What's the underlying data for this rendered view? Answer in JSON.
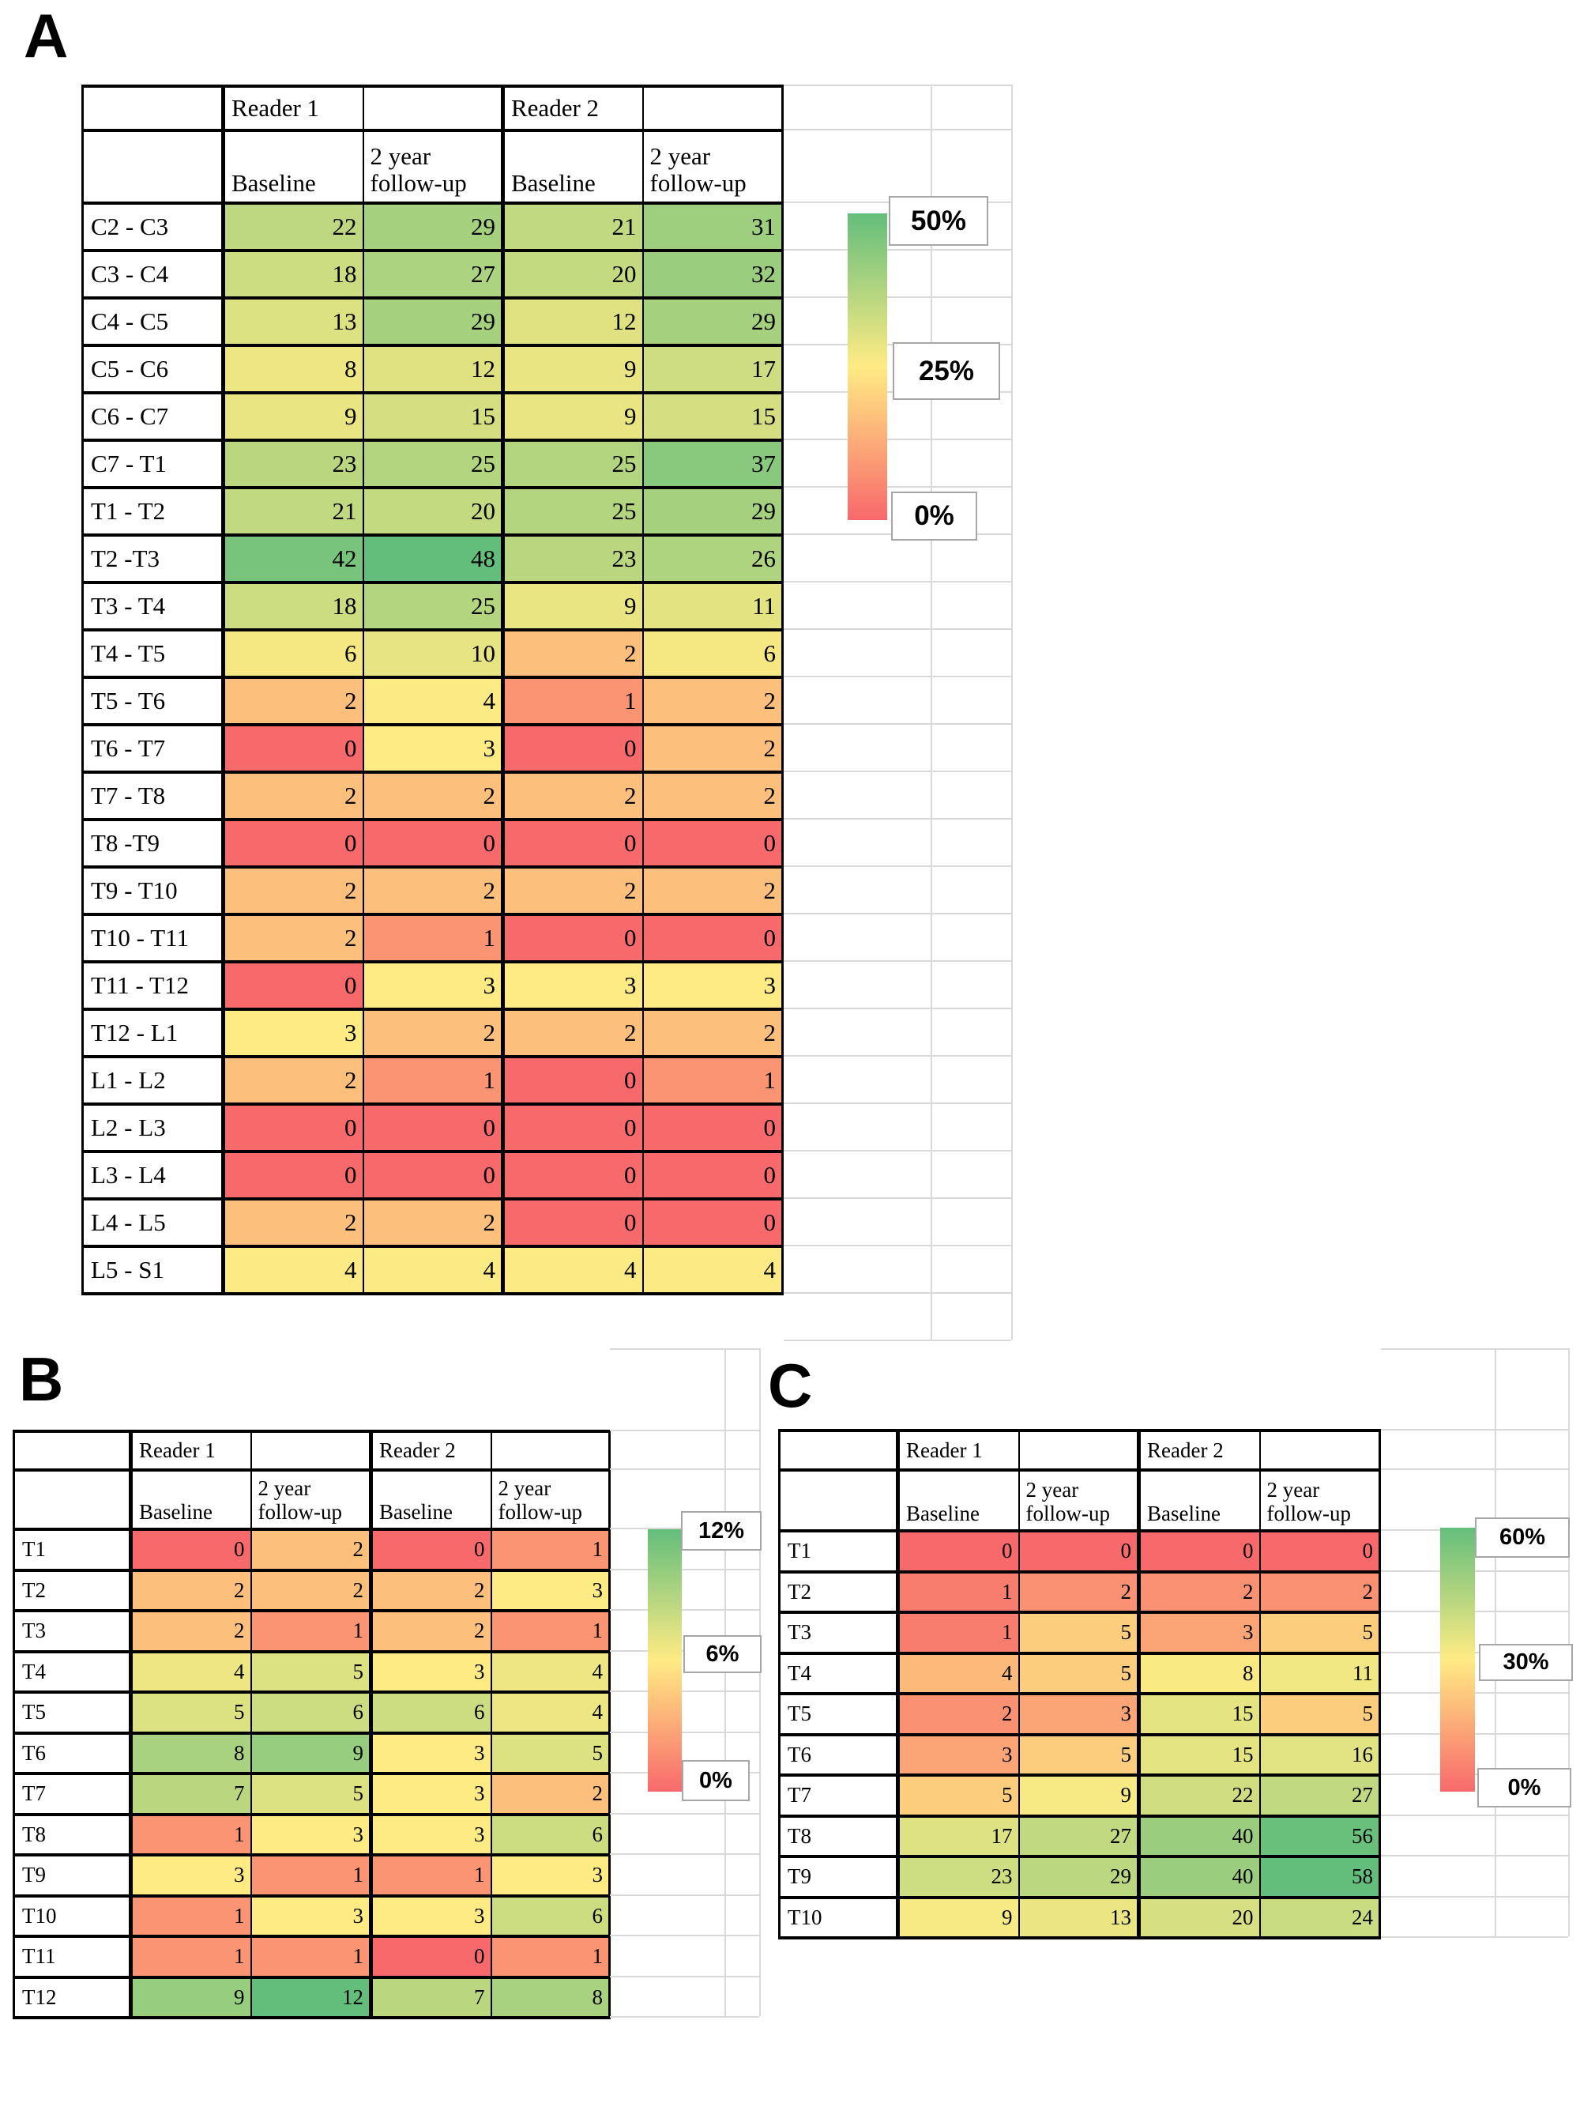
{
  "chart_data": [
    {
      "type": "heatmap",
      "panel_label": "A",
      "column_groups": [
        "Reader 1",
        "Reader 2"
      ],
      "sub_columns": [
        "Baseline",
        "2 year follow-up",
        "Baseline",
        "2 year follow-up"
      ],
      "rows": [
        {
          "label": "C2 - C3",
          "values": [
            22,
            29,
            21,
            31
          ]
        },
        {
          "label": "C3 - C4",
          "values": [
            18,
            27,
            20,
            32
          ]
        },
        {
          "label": "C4 - C5",
          "values": [
            13,
            29,
            12,
            29
          ]
        },
        {
          "label": "C5 - C6",
          "values": [
            8,
            12,
            9,
            17
          ]
        },
        {
          "label": "C6 - C7",
          "values": [
            9,
            15,
            9,
            15
          ]
        },
        {
          "label": "C7 - T1",
          "values": [
            23,
            25,
            25,
            37
          ]
        },
        {
          "label": "T1 - T2",
          "values": [
            21,
            20,
            25,
            29
          ]
        },
        {
          "label": "T2 -T3",
          "values": [
            42,
            48,
            23,
            26
          ]
        },
        {
          "label": "T3 - T4",
          "values": [
            18,
            25,
            9,
            11
          ]
        },
        {
          "label": "T4 - T5",
          "values": [
            6,
            10,
            2,
            6
          ]
        },
        {
          "label": "T5 - T6",
          "values": [
            2,
            4,
            1,
            2
          ]
        },
        {
          "label": "T6 - T7",
          "values": [
            0,
            3,
            0,
            2
          ]
        },
        {
          "label": "T7 - T8",
          "values": [
            2,
            2,
            2,
            2
          ]
        },
        {
          "label": "T8 -T9",
          "values": [
            0,
            0,
            0,
            0
          ]
        },
        {
          "label": "T9 - T10",
          "values": [
            2,
            2,
            2,
            2
          ]
        },
        {
          "label": "T10 - T11",
          "values": [
            2,
            1,
            0,
            0
          ]
        },
        {
          "label": "T11 - T12",
          "values": [
            0,
            3,
            3,
            3
          ]
        },
        {
          "label": "T12 - L1",
          "values": [
            3,
            2,
            2,
            2
          ]
        },
        {
          "label": "L1 - L2",
          "values": [
            2,
            1,
            0,
            1
          ]
        },
        {
          "label": "L2 - L3",
          "values": [
            0,
            0,
            0,
            0
          ]
        },
        {
          "label": "L3 - L4",
          "values": [
            0,
            0,
            0,
            0
          ]
        },
        {
          "label": "L4 - L5",
          "values": [
            2,
            2,
            0,
            0
          ]
        },
        {
          "label": "L5 - S1",
          "values": [
            4,
            4,
            4,
            4
          ]
        }
      ],
      "color_scale": {
        "min": 0,
        "min_color": "#F8696B",
        "mid": 3,
        "mid_color": "#FFEB84",
        "max": 48,
        "max_color": "#63BE7B"
      },
      "legend_labels": [
        "50%",
        "25%",
        "0%"
      ]
    },
    {
      "type": "heatmap",
      "panel_label": "B",
      "column_groups": [
        "Reader 1",
        "Reader 2"
      ],
      "sub_columns": [
        "Baseline",
        "2 year follow-up",
        "Baseline",
        "2 year follow-up"
      ],
      "rows": [
        {
          "label": "T1",
          "values": [
            0,
            2,
            0,
            1
          ]
        },
        {
          "label": "T2",
          "values": [
            2,
            2,
            2,
            3
          ]
        },
        {
          "label": "T3",
          "values": [
            2,
            1,
            2,
            1
          ]
        },
        {
          "label": "T4",
          "values": [
            4,
            5,
            3,
            4
          ]
        },
        {
          "label": "T5",
          "values": [
            5,
            6,
            6,
            4
          ]
        },
        {
          "label": "T6",
          "values": [
            8,
            9,
            3,
            5
          ]
        },
        {
          "label": "T7",
          "values": [
            7,
            5,
            3,
            2
          ]
        },
        {
          "label": "T8",
          "values": [
            1,
            3,
            3,
            6
          ]
        },
        {
          "label": "T9",
          "values": [
            3,
            1,
            1,
            3
          ]
        },
        {
          "label": "T10",
          "values": [
            1,
            3,
            3,
            6
          ]
        },
        {
          "label": "T11",
          "values": [
            1,
            1,
            0,
            1
          ]
        },
        {
          "label": "T12",
          "values": [
            9,
            12,
            7,
            8
          ]
        }
      ],
      "color_scale": {
        "min": 0,
        "min_color": "#F8696B",
        "mid": 3,
        "mid_color": "#FFEB84",
        "max": 12,
        "max_color": "#63BE7B"
      },
      "legend_labels": [
        "12%",
        "6%",
        "0%"
      ]
    },
    {
      "type": "heatmap",
      "panel_label": "C",
      "column_groups": [
        "Reader 1",
        "Reader 2"
      ],
      "sub_columns": [
        "Baseline",
        "2 year follow-up",
        "Baseline",
        "2 year follow-up"
      ],
      "rows": [
        {
          "label": "T1",
          "values": [
            0,
            0,
            0,
            0
          ]
        },
        {
          "label": "T2",
          "values": [
            1,
            2,
            2,
            2
          ]
        },
        {
          "label": "T3",
          "values": [
            1,
            5,
            3,
            5
          ]
        },
        {
          "label": "T4",
          "values": [
            4,
            5,
            8,
            11
          ]
        },
        {
          "label": "T5",
          "values": [
            2,
            3,
            15,
            5
          ]
        },
        {
          "label": "T6",
          "values": [
            3,
            5,
            15,
            16
          ]
        },
        {
          "label": "T7",
          "values": [
            5,
            9,
            22,
            27
          ]
        },
        {
          "label": "T8",
          "values": [
            17,
            27,
            40,
            56
          ]
        },
        {
          "label": "T9",
          "values": [
            23,
            29,
            40,
            58
          ]
        },
        {
          "label": "T10",
          "values": [
            9,
            13,
            20,
            24
          ]
        }
      ],
      "color_scale": {
        "min": 0,
        "min_color": "#F8696B",
        "mid": 6.5,
        "mid_color": "#FFEB84",
        "max": 58,
        "max_color": "#63BE7B"
      },
      "legend_labels": [
        "60%",
        "30%",
        "0%"
      ]
    }
  ]
}
